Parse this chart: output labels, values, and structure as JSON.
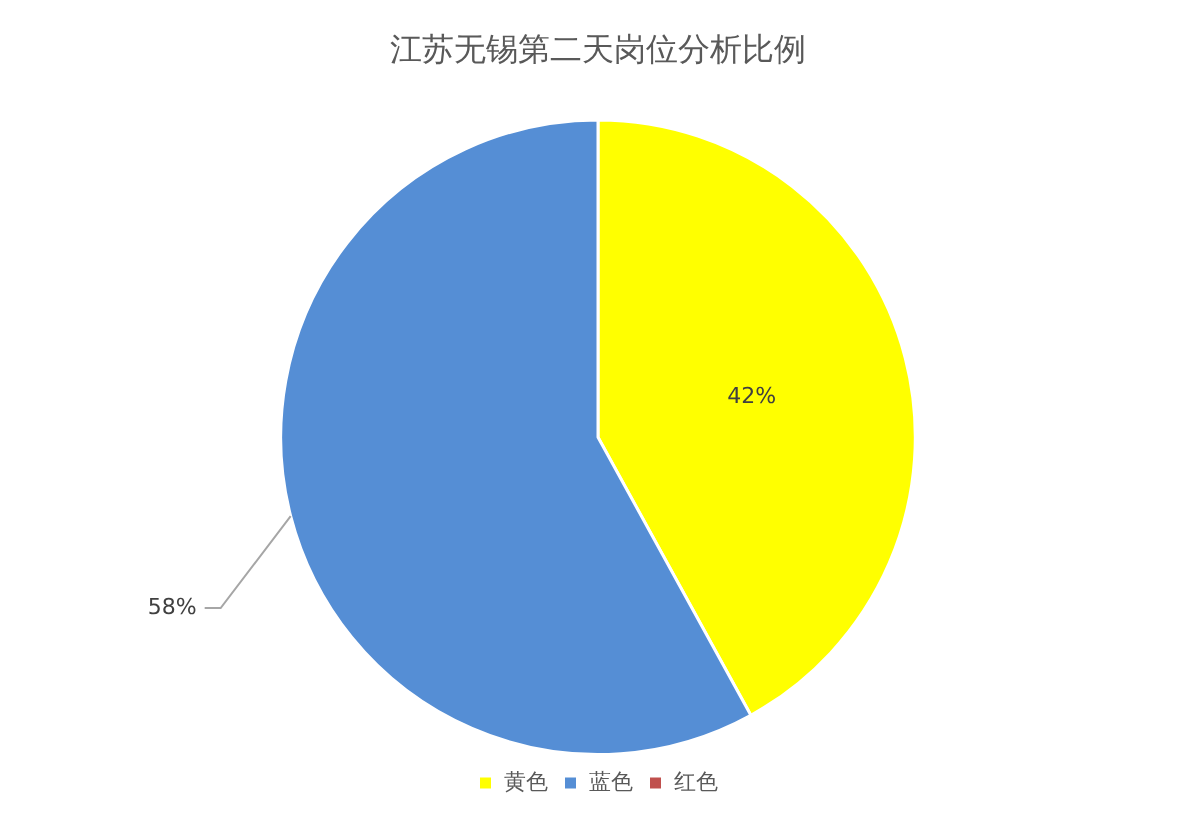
{
  "chart_data": {
    "type": "pie",
    "title": "江苏无锡第二天岗位分析比例",
    "categories": [
      "黄色",
      "蓝色",
      "红色"
    ],
    "values": [
      42,
      58,
      0
    ],
    "colors": [
      "#ffff00",
      "#558ed5",
      "#c0504d"
    ],
    "value_labels": [
      "42%",
      "58%",
      null
    ],
    "legend": "bottom"
  }
}
